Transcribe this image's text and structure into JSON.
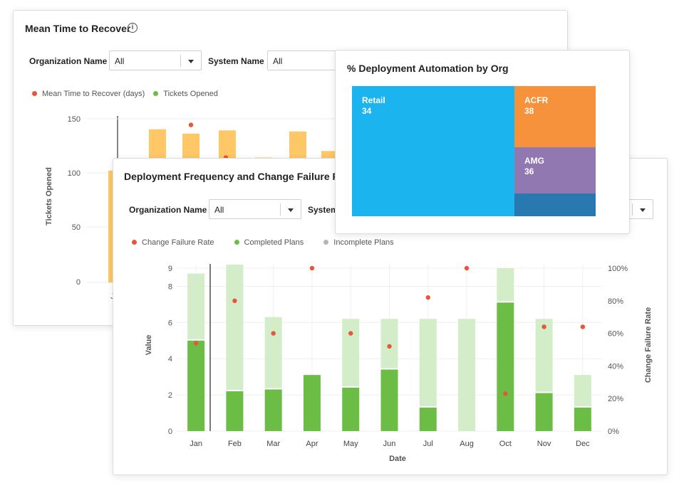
{
  "mttr": {
    "title": "Mean Time to Recover",
    "filters": {
      "org_label": "Organization Name",
      "org_value": "All",
      "system_label": "System Name",
      "system_value": "All"
    },
    "legend": [
      {
        "label": "Mean Time to Recover (days)",
        "color": "#e8553b"
      },
      {
        "label": "Tickets Opened",
        "color": "#6cbd45"
      }
    ],
    "ylabel": "Tickets Opened",
    "yticks": [
      "150",
      "100",
      "50",
      "0"
    ],
    "visible_x_tick": "J",
    "bars": [
      103,
      141,
      137,
      140,
      115,
      139,
      121
    ],
    "bar_color": "#ffc766",
    "dots": [
      145,
      115
    ]
  },
  "deployment_automation": {
    "title": "% Deployment Automation by Org",
    "cells": [
      {
        "label": "Retail",
        "value": "34",
        "color": "#1cb4ee"
      },
      {
        "label": "ACFR",
        "value": "38",
        "color": "#f6923b"
      },
      {
        "label": "AMG",
        "value": "36",
        "color": "#9278b0"
      },
      {
        "label": "",
        "value": "",
        "color": "#2978b0"
      }
    ]
  },
  "deploy_freq": {
    "title": "Deployment Frequency and Change Failure Rate",
    "filters": {
      "org_label": "Organization Name",
      "org_value": "All",
      "system_label": "System"
    },
    "legend": [
      {
        "label": "Change Failure Rate",
        "color": "#e8553b"
      },
      {
        "label": "Completed Plans",
        "color": "#6cbd45"
      },
      {
        "label": "Incomplete Plans",
        "color": "#b5b5b5"
      }
    ]
  },
  "chart_data": {
    "type": "bar",
    "stacked": true,
    "xlabel": "Date",
    "ylabel": "Value",
    "y2label": "Change Failure Rate",
    "ylim": [
      0,
      9
    ],
    "yticks": [
      0,
      2,
      4,
      6,
      8,
      9
    ],
    "y2lim": [
      0,
      100
    ],
    "y2ticks": [
      "0%",
      "20%",
      "40%",
      "60%",
      "80%",
      "100%"
    ],
    "categories": [
      "Jan",
      "Feb",
      "Mar",
      "Apr",
      "May",
      "Jun",
      "Jul",
      "Aug",
      "Oct",
      "Nov",
      "Dec"
    ],
    "series": [
      {
        "name": "Completed Plans",
        "color": "#6cbd45",
        "values": [
          5.0,
          2.2,
          2.3,
          3.1,
          2.4,
          3.4,
          1.3,
          0,
          7.1,
          2.1,
          1.3
        ]
      },
      {
        "name": "Incomplete Plans",
        "color": "#d3edc8",
        "values": [
          3.7,
          7.0,
          4.0,
          0,
          3.8,
          2.8,
          4.9,
          6.2,
          1.9,
          4.1,
          1.8
        ]
      },
      {
        "name": "Change Failure Rate",
        "color": "#e8553b",
        "axis": "right",
        "values": [
          54,
          80,
          60,
          100,
          60,
          52,
          82,
          100,
          23,
          64,
          64
        ]
      }
    ]
  }
}
